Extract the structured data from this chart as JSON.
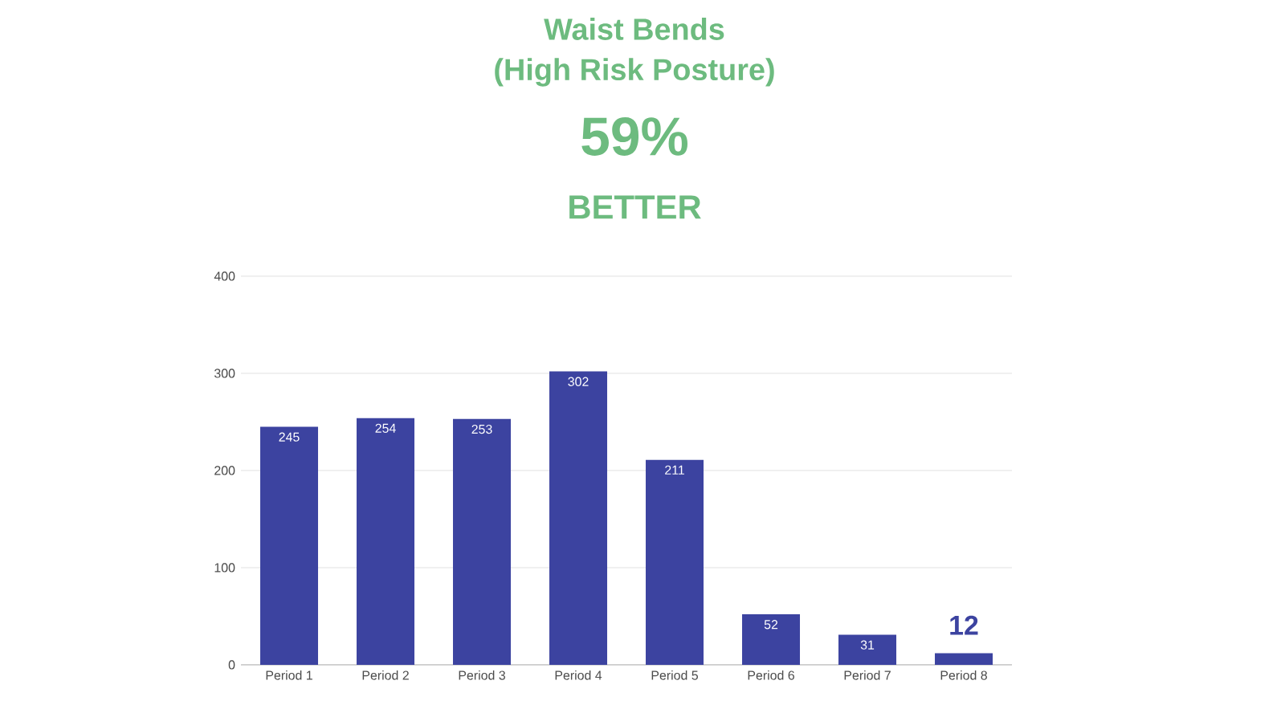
{
  "chart_data": {
    "type": "bar",
    "title": "Waist Bends",
    "subtitle": "(High Risk Posture)",
    "annotations": [
      "59%",
      "BETTER"
    ],
    "categories": [
      "Period 1",
      "Period 2",
      "Period 3",
      "Period 4",
      "Period 5",
      "Period 6",
      "Period 7",
      "Period 8"
    ],
    "values": [
      245,
      254,
      253,
      302,
      211,
      52,
      31,
      12
    ],
    "color": "#3c43a0",
    "ylim": [
      0,
      400
    ],
    "yticks": [
      0,
      100,
      200,
      300,
      400
    ],
    "grid": "y",
    "data_labels": true
  }
}
